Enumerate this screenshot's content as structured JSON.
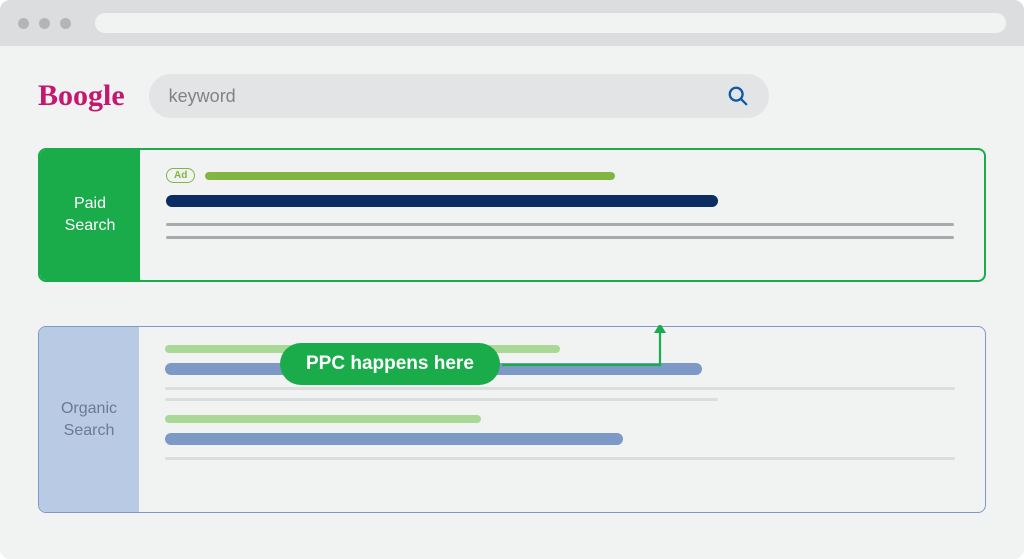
{
  "colors": {
    "frame_bg": "#f1f2f2",
    "bar_bg": "#dcddde",
    "dot": "#b3b5b7",
    "url_bar": "#f1f2f2",
    "logo": "#c3186e",
    "searchbox_bg": "#e3e4e5",
    "placeholder": "#808285",
    "search_icon": "#0b5aa8",
    "paid_border": "#1aab4b",
    "paid_label_bg": "#1aab4b",
    "paid_ad_green": "#83b541",
    "paid_title": "#0c2d63",
    "body_line": "#a7a9ac",
    "callout_bg": "#1aab4b",
    "arrow": "#1aab4b",
    "organic_border": "#7d9ac7",
    "organic_label_bg": "#b9cae5",
    "organic_green": "#aad897",
    "organic_title": "#7d9ac7",
    "organic_body": "#dcddde"
  },
  "logo": "Boogle",
  "search_placeholder": "keyword",
  "paid": {
    "label": "Paid\nSearch",
    "ad_badge": "Ad",
    "url_bar_width_pct": 52,
    "title_bar_width_pct": 70,
    "body_lines": [
      100,
      100
    ]
  },
  "callout_text": "PPC happens here",
  "organic": {
    "label": "Organic\nSearch",
    "results": [
      {
        "url_width_pct": 50,
        "title_width_pct": 68,
        "body_lines": [
          100,
          70
        ]
      },
      {
        "url_width_pct": 40,
        "title_width_pct": 58,
        "body_lines": [
          100
        ]
      }
    ]
  }
}
